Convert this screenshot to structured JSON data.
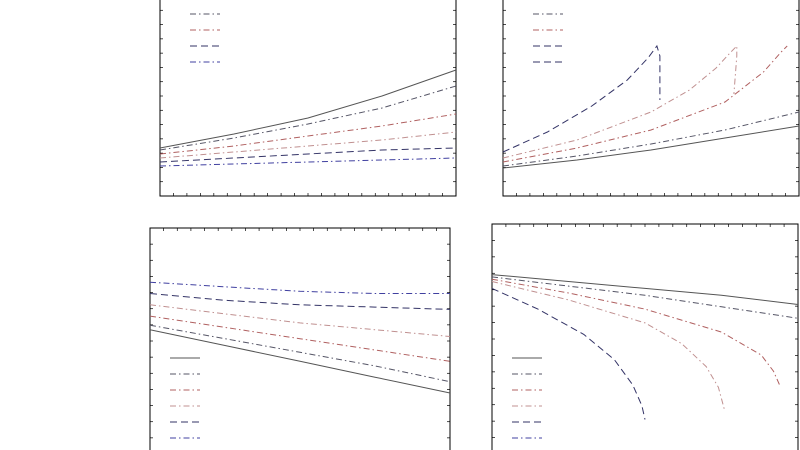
{
  "chart_data": [
    {
      "type": "line",
      "title": "",
      "xlabel": "",
      "ylabel": "",
      "xlim": [
        0,
        1
      ],
      "ylim": [
        0,
        1
      ],
      "grid": false,
      "legend_position": "top-left",
      "series": [
        {
          "style": "solid",
          "color": "#555555",
          "x": [
            0,
            0.25,
            0.5,
            0.75,
            1
          ],
          "y": [
            0.24,
            0.31,
            0.39,
            0.5,
            0.63
          ]
        },
        {
          "style": "dashdot",
          "color": "#555566",
          "x": [
            0,
            0.25,
            0.5,
            0.75,
            1
          ],
          "y": [
            0.23,
            0.29,
            0.36,
            0.44,
            0.55
          ]
        },
        {
          "style": "dashdot",
          "color": "#b06060",
          "x": [
            0,
            0.25,
            0.5,
            0.75,
            1
          ],
          "y": [
            0.21,
            0.25,
            0.3,
            0.35,
            0.41
          ]
        },
        {
          "style": "dashdot",
          "color": "#c09090",
          "x": [
            0,
            0.25,
            0.5,
            0.75,
            1
          ],
          "y": [
            0.19,
            0.22,
            0.25,
            0.28,
            0.32
          ]
        },
        {
          "style": "dashed",
          "color": "#333366",
          "x": [
            0,
            0.25,
            0.5,
            0.75,
            1
          ],
          "y": [
            0.17,
            0.19,
            0.21,
            0.23,
            0.24
          ]
        },
        {
          "style": "dashdot",
          "color": "#4040a0",
          "x": [
            0,
            0.25,
            0.5,
            0.75,
            1
          ],
          "y": [
            0.15,
            0.16,
            0.17,
            0.18,
            0.19
          ]
        }
      ]
    },
    {
      "type": "line",
      "title": "",
      "xlabel": "",
      "ylabel": "",
      "xlim": [
        0,
        1
      ],
      "ylim": [
        0,
        1
      ],
      "grid": false,
      "legend_position": "top-left",
      "series": [
        {
          "style": "solid",
          "color": "#555555",
          "x": [
            0,
            0.25,
            0.5,
            0.75,
            1
          ],
          "y": [
            0.14,
            0.18,
            0.23,
            0.29,
            0.35
          ]
        },
        {
          "style": "dashdot",
          "color": "#555566",
          "x": [
            0,
            0.25,
            0.5,
            0.75,
            1
          ],
          "y": [
            0.15,
            0.2,
            0.26,
            0.33,
            0.42
          ]
        },
        {
          "style": "dashdot",
          "color": "#b06060",
          "x": [
            0,
            0.25,
            0.5,
            0.75,
            0.88,
            0.94,
            0.96
          ],
          "y": [
            0.17,
            0.24,
            0.33,
            0.47,
            0.62,
            0.72,
            0.75
          ]
        },
        {
          "style": "dashdot",
          "color": "#c09090",
          "x": [
            0,
            0.25,
            0.5,
            0.63,
            0.72,
            0.77,
            0.79,
            0.79,
            0.78
          ],
          "y": [
            0.19,
            0.28,
            0.42,
            0.53,
            0.64,
            0.72,
            0.75,
            0.7,
            0.51
          ]
        },
        {
          "style": "dashed",
          "color": "#333366",
          "x": [
            0,
            0.15,
            0.3,
            0.42,
            0.49,
            0.52,
            0.53,
            0.53
          ],
          "y": [
            0.22,
            0.32,
            0.45,
            0.58,
            0.69,
            0.75,
            0.7,
            0.48
          ]
        }
      ]
    },
    {
      "type": "line",
      "title": "",
      "xlabel": "",
      "ylabel": "",
      "xlim": [
        0,
        1
      ],
      "ylim": [
        0,
        1
      ],
      "grid": false,
      "legend_position": "bottom-left",
      "series": [
        {
          "style": "solid",
          "color": "#555555",
          "x": [
            0,
            0.25,
            0.5,
            0.75,
            1
          ],
          "y": [
            0.55,
            0.48,
            0.41,
            0.34,
            0.27
          ]
        },
        {
          "style": "dashdot",
          "color": "#555566",
          "x": [
            0,
            0.25,
            0.5,
            0.75,
            1
          ],
          "y": [
            0.57,
            0.51,
            0.45,
            0.39,
            0.32
          ]
        },
        {
          "style": "dashdot",
          "color": "#b06060",
          "x": [
            0,
            0.25,
            0.5,
            0.75,
            1
          ],
          "y": [
            0.61,
            0.56,
            0.51,
            0.46,
            0.41
          ]
        },
        {
          "style": "dashdot",
          "color": "#c09090",
          "x": [
            0,
            0.25,
            0.5,
            0.75,
            1
          ],
          "y": [
            0.66,
            0.62,
            0.58,
            0.55,
            0.52
          ]
        },
        {
          "style": "dashed",
          "color": "#333366",
          "x": [
            0,
            0.25,
            0.5,
            0.75,
            1
          ],
          "y": [
            0.71,
            0.68,
            0.66,
            0.65,
            0.64
          ]
        },
        {
          "style": "dashdot",
          "color": "#4040a0",
          "x": [
            0,
            0.25,
            0.5,
            0.75,
            1
          ],
          "y": [
            0.76,
            0.74,
            0.72,
            0.71,
            0.71
          ]
        }
      ]
    },
    {
      "type": "line",
      "title": "",
      "xlabel": "",
      "ylabel": "",
      "xlim": [
        0,
        1
      ],
      "ylim": [
        0,
        1
      ],
      "grid": false,
      "legend_position": "bottom-left",
      "series": [
        {
          "style": "solid",
          "color": "#555555",
          "x": [
            0,
            0.25,
            0.5,
            0.75,
            1
          ],
          "y": [
            0.78,
            0.75,
            0.72,
            0.69,
            0.65
          ]
        },
        {
          "style": "dashdot",
          "color": "#555566",
          "x": [
            0,
            0.25,
            0.5,
            0.75,
            1
          ],
          "y": [
            0.77,
            0.73,
            0.69,
            0.64,
            0.59
          ]
        },
        {
          "style": "dashdot",
          "color": "#b06060",
          "x": [
            0,
            0.25,
            0.5,
            0.75,
            0.88,
            0.92,
            0.94
          ],
          "y": [
            0.76,
            0.7,
            0.63,
            0.53,
            0.43,
            0.36,
            0.3
          ]
        },
        {
          "style": "dashdot",
          "color": "#c09090",
          "x": [
            0,
            0.25,
            0.5,
            0.62,
            0.7,
            0.74,
            0.76
          ],
          "y": [
            0.75,
            0.67,
            0.57,
            0.48,
            0.38,
            0.29,
            0.19
          ]
        },
        {
          "style": "dashed",
          "color": "#333366",
          "x": [
            0,
            0.15,
            0.3,
            0.4,
            0.46,
            0.49,
            0.5
          ],
          "y": [
            0.72,
            0.63,
            0.52,
            0.41,
            0.3,
            0.21,
            0.15
          ]
        }
      ]
    }
  ]
}
